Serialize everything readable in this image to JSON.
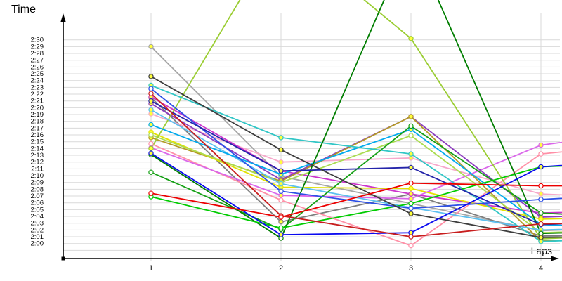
{
  "chart_data": {
    "type": "line",
    "title": "",
    "ylabel": "Time",
    "xlabel": "Laps",
    "x_ticks": [
      "1",
      "2",
      "3",
      "4"
    ],
    "y_ticks": [
      "2:30",
      "2:29",
      "2:28",
      "2:27",
      "2:26",
      "2:25",
      "2:24",
      "2:23",
      "2:22",
      "2:21",
      "2:20",
      "2:19",
      "2:18",
      "2:17",
      "2:16",
      "2:15",
      "2:14",
      "2:13",
      "2:12",
      "2:11",
      "2:10",
      "2:09",
      "2:08",
      "2:07",
      "2:06",
      "2:05",
      "2:04",
      "2:03",
      "2:02",
      "2:01",
      "2:00"
    ],
    "y_axis": {
      "min_label": "2:00",
      "max_label": "2:30",
      "tick_step": "1 second",
      "units": "m:ss lap time"
    },
    "grid": true,
    "legend": false,
    "value_unit": "seconds above 2:00",
    "note": "unlabeled multi-series lap-time plot; line stubs continue past lap 4 to the image edge (lap5_est = visible continuation slope); values above 30 exit the top of the chart",
    "series": [
      {
        "name": "silver",
        "color": "#a6a6a6",
        "marker_fill": "#ffff3c",
        "values": [
          29.0,
          9.9,
          5.9,
          1.9
        ],
        "lap5_est": 2.5
      },
      {
        "name": "gray",
        "color": "#7d7d7d",
        "marker_fill": "#ffff3c",
        "values": [
          21.5,
          3.2,
          7.3,
          1.1
        ],
        "lap5_est": 1.5
      },
      {
        "name": "pink",
        "color": "#f7a8cb",
        "marker_fill": "#ffff3c",
        "values": [
          19.1,
          12.0,
          12.6,
          7.3
        ],
        "lap5_est": 6.5
      },
      {
        "name": "salmon-pink",
        "color": "#ff8fa6",
        "marker_fill": "#ffffff",
        "values": [
          14.7,
          6.4,
          -0.3,
          13.2
        ],
        "lap5_est": 15.0
      },
      {
        "name": "violet",
        "color": "#da66ea",
        "marker_fill": "#ffff3c",
        "values": [
          14.1,
          7.1,
          6.6,
          14.5
        ],
        "lap5_est": 17.0
      },
      {
        "name": "magenta",
        "color": "#cc33cc",
        "marker_fill": "#ffff3c",
        "values": [
          21.6,
          10.7,
          7.3,
          4.5
        ],
        "lap5_est": 5.0
      },
      {
        "name": "purple",
        "color": "#8c3bbf",
        "marker_fill": "#ffff3c",
        "values": [
          20.6,
          9.4,
          18.7,
          3.9
        ],
        "lap5_est": 4.5
      },
      {
        "name": "dark-khaki",
        "color": "#b39b26",
        "marker_fill": "#ffff3c",
        "values": [
          15.6,
          9.2,
          18.7,
          0.4
        ],
        "lap5_est": 1.0
      },
      {
        "name": "yellow",
        "color": "#e2e200",
        "marker_fill": "#ffff3c",
        "values": [
          16.4,
          8.3,
          8.1,
          3.6
        ],
        "lap5_est": 4.0
      },
      {
        "name": "light-green",
        "color": "#aadc50",
        "marker_fill": "#ffffff",
        "values": [
          16.0,
          9.0,
          15.9,
          1.6
        ],
        "lap5_est": 2.2
      },
      {
        "name": "yellow-green",
        "color": "#9acd32",
        "marker_fill": "#ffff3c",
        "values": [
          14.0,
          46.0,
          30.2,
          0.7
        ],
        "lap5_est": 1.5
      },
      {
        "name": "sky-blue",
        "color": "#5cc0f0",
        "marker_fill": "#ffff3c",
        "values": [
          19.7,
          8.8,
          5.3,
          2.0
        ],
        "lap5_est": 2.5
      },
      {
        "name": "deep-sky-blue",
        "color": "#00aaee",
        "marker_fill": "#ffff3c",
        "values": [
          17.5,
          10.2,
          16.8,
          2.8
        ],
        "lap5_est": 2.0
      },
      {
        "name": "turquoise",
        "color": "#31c6c6",
        "marker_fill": "#ffff3c",
        "values": [
          23.3,
          15.6,
          13.2,
          0.3
        ],
        "lap5_est": 1.0
      },
      {
        "name": "forest-green",
        "color": "#15a015",
        "marker_fill": "#ffffff",
        "values": [
          10.5,
          2.1,
          17.3,
          4.5
        ],
        "lap5_est": 3.5
      },
      {
        "name": "dark-green",
        "color": "#007d00",
        "marker_fill": "#ffffff",
        "values": [
          13.1,
          0.8,
          45.0,
          1.5
        ],
        "lap5_est": 2.0
      },
      {
        "name": "green",
        "color": "#00cc00",
        "marker_fill": "#ffffff",
        "values": [
          6.9,
          2.3,
          5.9,
          11.3
        ],
        "lap5_est": 12.0
      },
      {
        "name": "medium-blue",
        "color": "#2d50e6",
        "marker_fill": "#ffffff",
        "values": [
          22.8,
          7.7,
          5.2,
          6.5
        ],
        "lap5_est": 7.5
      },
      {
        "name": "navy",
        "color": "#2424aa",
        "marker_fill": "#ffff3c",
        "values": [
          21.0,
          10.7,
          11.2,
          2.8
        ],
        "lap5_est": 3.5
      },
      {
        "name": "black",
        "color": "#3d3d3d",
        "marker_fill": "#ffff3c",
        "values": [
          24.6,
          13.8,
          4.4,
          0.9
        ],
        "lap5_est": 1.2
      },
      {
        "name": "blue",
        "color": "#0a0af0",
        "marker_fill": "#ffff3c",
        "values": [
          13.3,
          1.3,
          1.6,
          11.3
        ],
        "lap5_est": 12.5
      },
      {
        "name": "dark-red",
        "color": "#c81e1e",
        "marker_fill": "#ffffff",
        "values": [
          22.1,
          4.1,
          1.0,
          2.9
        ],
        "lap5_est": 3.3
      },
      {
        "name": "red",
        "color": "#ec0000",
        "marker_fill": "#ffffff",
        "values": [
          7.4,
          3.9,
          8.9,
          8.5
        ],
        "lap5_est": 8.5
      }
    ]
  },
  "colors": {
    "background": "#ffffff",
    "gridline": "#d9d9d9",
    "axis": "#000000",
    "tick_text": "#000000"
  }
}
